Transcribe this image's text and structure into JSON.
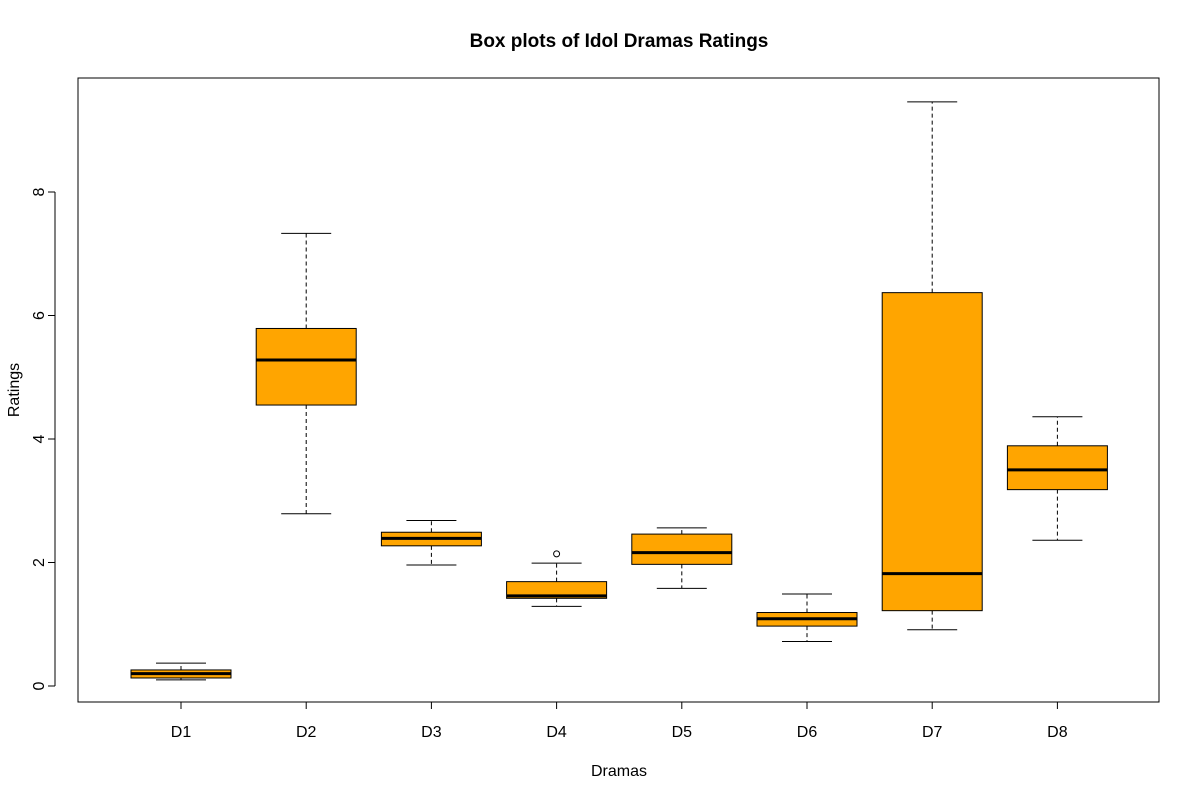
{
  "chart_data": {
    "type": "box",
    "title": "Box plots of Idol Dramas Ratings",
    "xlabel": "Dramas",
    "ylabel": "Ratings",
    "ylim": [
      -0.3,
      9.8
    ],
    "yticks": [
      0,
      2,
      4,
      6,
      8
    ],
    "grid": false,
    "box_color": "#FFA500",
    "categories": [
      "D1",
      "D2",
      "D3",
      "D4",
      "D5",
      "D6",
      "D7",
      "D8"
    ],
    "boxes": [
      {
        "name": "D1",
        "min": 0.1,
        "q1": 0.13,
        "median": 0.2,
        "q3": 0.26,
        "max": 0.37,
        "outliers": []
      },
      {
        "name": "D2",
        "min": 2.79,
        "q1": 4.55,
        "median": 5.28,
        "q3": 5.79,
        "max": 7.33,
        "outliers": []
      },
      {
        "name": "D3",
        "min": 1.96,
        "q1": 2.27,
        "median": 2.39,
        "q3": 2.49,
        "max": 2.68,
        "outliers": []
      },
      {
        "name": "D4",
        "min": 1.29,
        "q1": 1.42,
        "median": 1.46,
        "q3": 1.69,
        "max": 1.99,
        "outliers": [
          2.14
        ]
      },
      {
        "name": "D5",
        "min": 1.58,
        "q1": 1.97,
        "median": 2.16,
        "q3": 2.46,
        "max": 2.56,
        "outliers": []
      },
      {
        "name": "D6",
        "min": 0.72,
        "q1": 0.97,
        "median": 1.09,
        "q3": 1.19,
        "max": 1.49,
        "outliers": []
      },
      {
        "name": "D7",
        "min": 0.91,
        "q1": 1.22,
        "median": 1.82,
        "q3": 6.37,
        "max": 9.46,
        "outliers": []
      },
      {
        "name": "D8",
        "min": 2.36,
        "q1": 3.18,
        "median": 3.5,
        "q3": 3.89,
        "max": 4.36,
        "outliers": []
      }
    ]
  }
}
